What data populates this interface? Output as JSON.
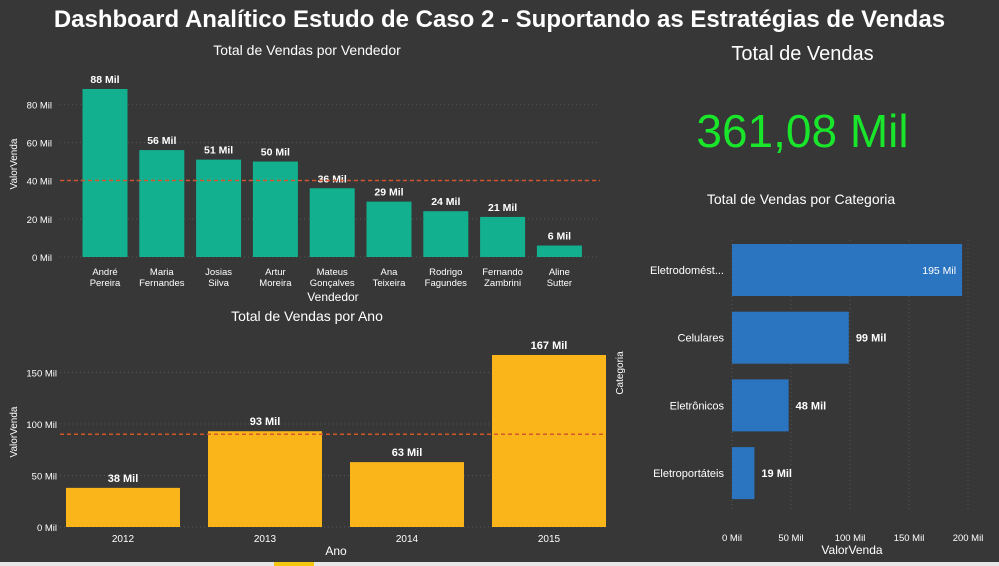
{
  "dashboard": {
    "title": "Dashboard Analítico Estudo de Caso 2 - Suportando as Estratégias de Vendas"
  },
  "kpi": {
    "title": "Total de Vendas",
    "value": "361,08 Mil",
    "value_color": "#19e62b"
  },
  "colors": {
    "background": "#373737",
    "vendedor_bar": "#12b08f",
    "ano_bar": "#f9b51a",
    "categoria_bar": "#2a74c0",
    "avg_line": "#d2562b"
  },
  "chart_data": [
    {
      "id": "vendedor",
      "type": "bar",
      "title": "Total de Vendas por Vendedor",
      "xlabel": "Vendedor",
      "ylabel": "ValorVenda",
      "categories": [
        [
          "André",
          "Pereira"
        ],
        [
          "Maria",
          "Fernandes"
        ],
        [
          "Josias",
          "Silva"
        ],
        [
          "Artur",
          "Moreira"
        ],
        [
          "Mateus",
          "Gonçalves"
        ],
        [
          "Ana",
          "Teixeira"
        ],
        [
          "Rodrigo",
          "Fagundes"
        ],
        [
          "Fernando",
          "Zambrini"
        ],
        [
          "Aline",
          "Sutter"
        ]
      ],
      "values": [
        88,
        56,
        51,
        50,
        36,
        29,
        24,
        21,
        6
      ],
      "data_labels": [
        "88 Mil",
        "56 Mil",
        "51 Mil",
        "50 Mil",
        "36 Mil",
        "29 Mil",
        "24 Mil",
        "21 Mil",
        "6 Mil"
      ],
      "yticks": [
        0,
        20,
        40,
        60,
        80
      ],
      "ytick_labels": [
        "0 Mil",
        "20 Mil",
        "40 Mil",
        "60 Mil",
        "80 Mil"
      ],
      "ylim": [
        0,
        88
      ],
      "average_line": 40.1,
      "grid": true
    },
    {
      "id": "ano",
      "type": "bar",
      "title": "Total de Vendas por Ano",
      "xlabel": "Ano",
      "ylabel": "ValorVenda",
      "categories": [
        "2012",
        "2013",
        "2014",
        "2015"
      ],
      "values": [
        38,
        93,
        63,
        167
      ],
      "data_labels": [
        "38 Mil",
        "93 Mil",
        "63 Mil",
        "167 Mil"
      ],
      "yticks": [
        0,
        50,
        100,
        150
      ],
      "ytick_labels": [
        "0 Mil",
        "50 Mil",
        "100 Mil",
        "150 Mil"
      ],
      "ylim": [
        0,
        167
      ],
      "average_line": 90,
      "grid": true
    },
    {
      "id": "categoria",
      "type": "bar",
      "orientation": "horizontal",
      "title": "Total de Vendas por Categoria",
      "xlabel": "ValorVenda",
      "ylabel": "Categoria",
      "categories": [
        "Eletrodomést...",
        "Celulares",
        "Eletrônicos",
        "Eletroportáteis"
      ],
      "values": [
        195,
        99,
        48,
        19
      ],
      "data_labels": [
        "195 Mil",
        "99 Mil",
        "48 Mil",
        "19 Mil"
      ],
      "xticks": [
        0,
        50,
        100,
        150,
        200
      ],
      "xtick_labels": [
        "0 Mil",
        "50 Mil",
        "100 Mil",
        "150 Mil",
        "200 Mil"
      ],
      "xlim": [
        0,
        200
      ],
      "grid": true
    }
  ]
}
